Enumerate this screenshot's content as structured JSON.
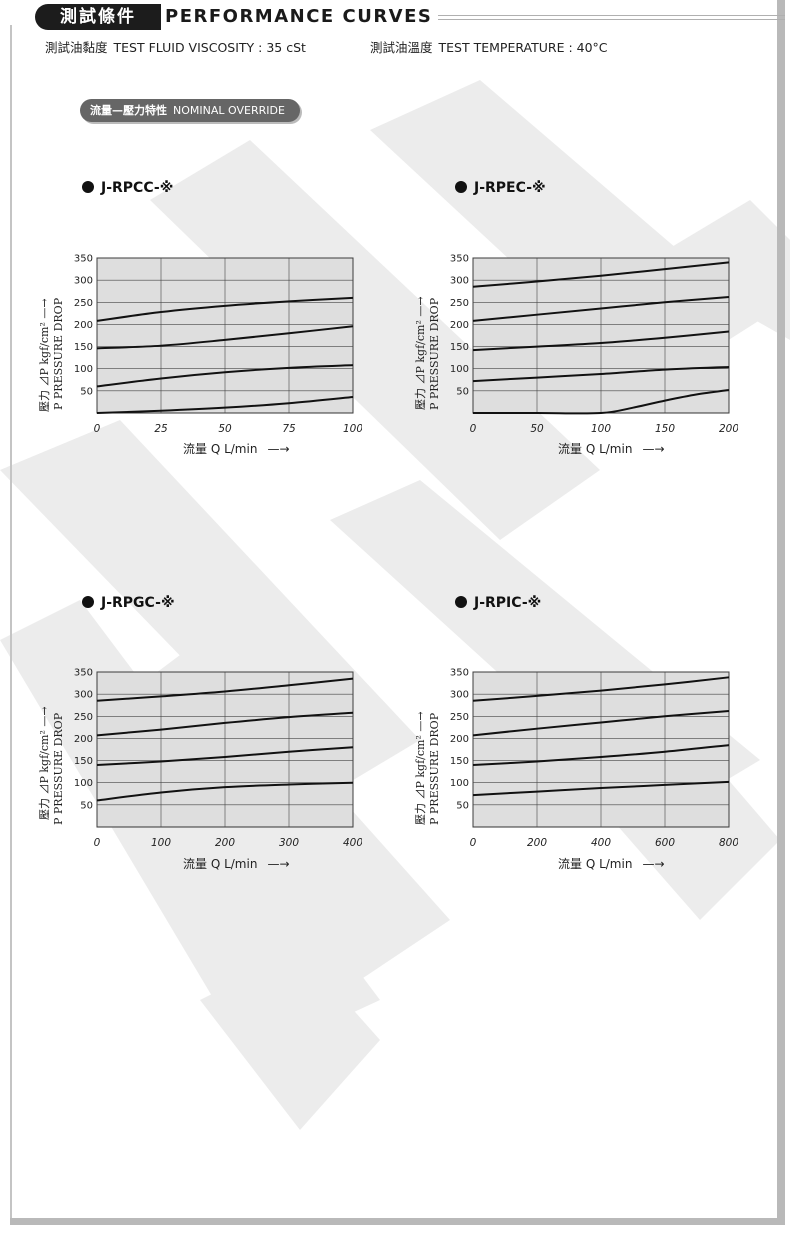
{
  "header": {
    "badge": "測試條件",
    "title": "PERFORMANCE CURVES"
  },
  "conditions": {
    "viscosity_zh": "測試油黏度",
    "viscosity": "TEST FLUID VISCOSITY : 35 cSt",
    "temperature_zh": "測試油溫度",
    "temperature": "TEST TEMPERATURE : 40°C"
  },
  "section": {
    "label_zh": "流量—壓力特性",
    "label_en": "NOMINAL OVERRIDE"
  },
  "axis": {
    "ylabel_zh": "壓力 ⊿P kgf/cm²",
    "ylabel_en": "P PRESSURE DROP",
    "xlabel": "流量 Q L/min",
    "x_arrow": "—→",
    "y_arrow": "—→"
  },
  "colors": {
    "curve": "#111111",
    "grid": "#444444",
    "shading": "#dedede",
    "badge": "#1c1c1c"
  },
  "chart_data": [
    {
      "type": "line",
      "title": "J-RPCC-※",
      "xlabel": "流量 Q L/min",
      "ylabel": "壓力 ⊿P kgf/cm² P PRESSURE DROP",
      "xlim": [
        0,
        100
      ],
      "ylim": [
        0,
        350
      ],
      "xticks": [
        0,
        25,
        50,
        75,
        100
      ],
      "yticks": [
        50,
        100,
        150,
        200,
        250,
        300,
        350
      ],
      "grid": true,
      "series": [
        {
          "x": [
            0,
            25,
            50,
            75,
            100
          ],
          "y": [
            208,
            228,
            242,
            252,
            260
          ]
        },
        {
          "x": [
            0,
            25,
            50,
            75,
            100
          ],
          "y": [
            146,
            152,
            165,
            180,
            196
          ]
        },
        {
          "x": [
            0,
            25,
            50,
            75,
            100
          ],
          "y": [
            60,
            78,
            92,
            102,
            108
          ]
        },
        {
          "x": [
            0,
            25,
            50,
            75,
            100
          ],
          "y": [
            0,
            5,
            12,
            22,
            36
          ]
        }
      ]
    },
    {
      "type": "line",
      "title": "J-RPEC-※",
      "xlabel": "流量 Q L/min",
      "ylabel": "壓力 ⊿P kgf/cm² P PRESSURE DROP",
      "xlim": [
        0,
        200
      ],
      "ylim": [
        0,
        350
      ],
      "xticks": [
        0,
        50,
        100,
        150,
        200
      ],
      "yticks": [
        50,
        100,
        150,
        200,
        250,
        300,
        350
      ],
      "grid": true,
      "series": [
        {
          "x": [
            0,
            50,
            100,
            150,
            200
          ],
          "y": [
            285,
            297,
            310,
            325,
            340
          ]
        },
        {
          "x": [
            0,
            50,
            100,
            150,
            200
          ],
          "y": [
            208,
            222,
            236,
            250,
            262
          ]
        },
        {
          "x": [
            0,
            50,
            100,
            150,
            200
          ],
          "y": [
            142,
            150,
            158,
            170,
            184
          ]
        },
        {
          "x": [
            0,
            50,
            100,
            150,
            200
          ],
          "y": [
            72,
            80,
            88,
            98,
            104
          ]
        },
        {
          "x": [
            0,
            50,
            100,
            125,
            150,
            175,
            200
          ],
          "y": [
            0,
            0,
            0,
            12,
            28,
            42,
            52
          ]
        }
      ]
    },
    {
      "type": "line",
      "title": "J-RPGC-※",
      "xlabel": "流量 Q L/min",
      "ylabel": "壓力 ⊿P kgf/cm² P PRESSURE DROP",
      "xlim": [
        0,
        400
      ],
      "ylim": [
        0,
        350
      ],
      "xticks": [
        0,
        100,
        200,
        300,
        400
      ],
      "yticks": [
        50,
        100,
        150,
        200,
        250,
        300,
        350
      ],
      "grid": true,
      "series": [
        {
          "x": [
            0,
            100,
            200,
            300,
            400
          ],
          "y": [
            285,
            295,
            306,
            320,
            335
          ]
        },
        {
          "x": [
            0,
            100,
            200,
            300,
            400
          ],
          "y": [
            207,
            220,
            235,
            248,
            258
          ]
        },
        {
          "x": [
            0,
            100,
            200,
            300,
            400
          ],
          "y": [
            140,
            148,
            158,
            170,
            180
          ]
        },
        {
          "x": [
            0,
            100,
            200,
            300,
            400
          ],
          "y": [
            60,
            78,
            90,
            96,
            100
          ]
        }
      ]
    },
    {
      "type": "line",
      "title": "J-RPIC-※",
      "xlabel": "流量 Q L/min",
      "ylabel": "壓力 ⊿P kgf/cm² P PRESSURE DROP",
      "xlim": [
        0,
        800
      ],
      "ylim": [
        0,
        350
      ],
      "xticks": [
        0,
        200,
        400,
        600,
        800
      ],
      "yticks": [
        50,
        100,
        150,
        200,
        250,
        300,
        350
      ],
      "grid": true,
      "series": [
        {
          "x": [
            0,
            200,
            400,
            600,
            800
          ],
          "y": [
            285,
            296,
            308,
            322,
            338
          ]
        },
        {
          "x": [
            0,
            200,
            400,
            600,
            800
          ],
          "y": [
            207,
            222,
            236,
            250,
            262
          ]
        },
        {
          "x": [
            0,
            200,
            400,
            600,
            800
          ],
          "y": [
            140,
            148,
            158,
            170,
            185
          ]
        },
        {
          "x": [
            0,
            200,
            400,
            600,
            800
          ],
          "y": [
            72,
            80,
            88,
            95,
            102
          ]
        }
      ]
    }
  ]
}
